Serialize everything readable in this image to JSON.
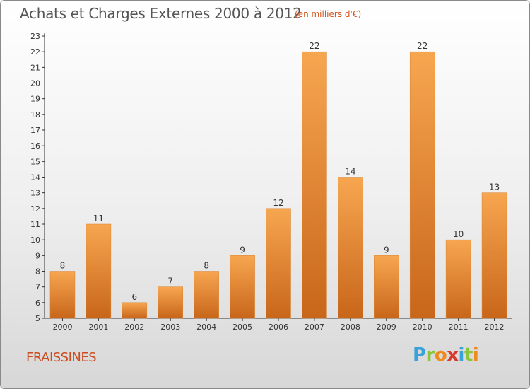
{
  "header": {
    "title": "Achats et Charges Externes 2000 à 2012",
    "subtitle": "(en milliers d'€)"
  },
  "footer": {
    "town": "FRAISSINES",
    "logo_text": "Proxiti"
  },
  "colors": {
    "bar_light": "#f7a650",
    "bar_dark": "#c8661a",
    "axis": "#333333",
    "title": "#555555",
    "accent": "#d4561e"
  },
  "chart_data": {
    "type": "bar",
    "title": "Achats et Charges Externes 2000 à 2012",
    "subtitle": "(en milliers d'€)",
    "categories": [
      "2000",
      "2001",
      "2002",
      "2003",
      "2004",
      "2005",
      "2006",
      "2007",
      "2008",
      "2009",
      "2010",
      "2011",
      "2012"
    ],
    "values": [
      8,
      11,
      6,
      7,
      8,
      9,
      12,
      22,
      14,
      9,
      22,
      10,
      13
    ],
    "ylim": [
      5,
      23
    ],
    "yticks": [
      5,
      6,
      7,
      8,
      9,
      10,
      11,
      12,
      13,
      14,
      15,
      16,
      17,
      18,
      19,
      20,
      21,
      22,
      23
    ],
    "xlabel": "",
    "ylabel": "",
    "grid": false,
    "legend": "none"
  }
}
